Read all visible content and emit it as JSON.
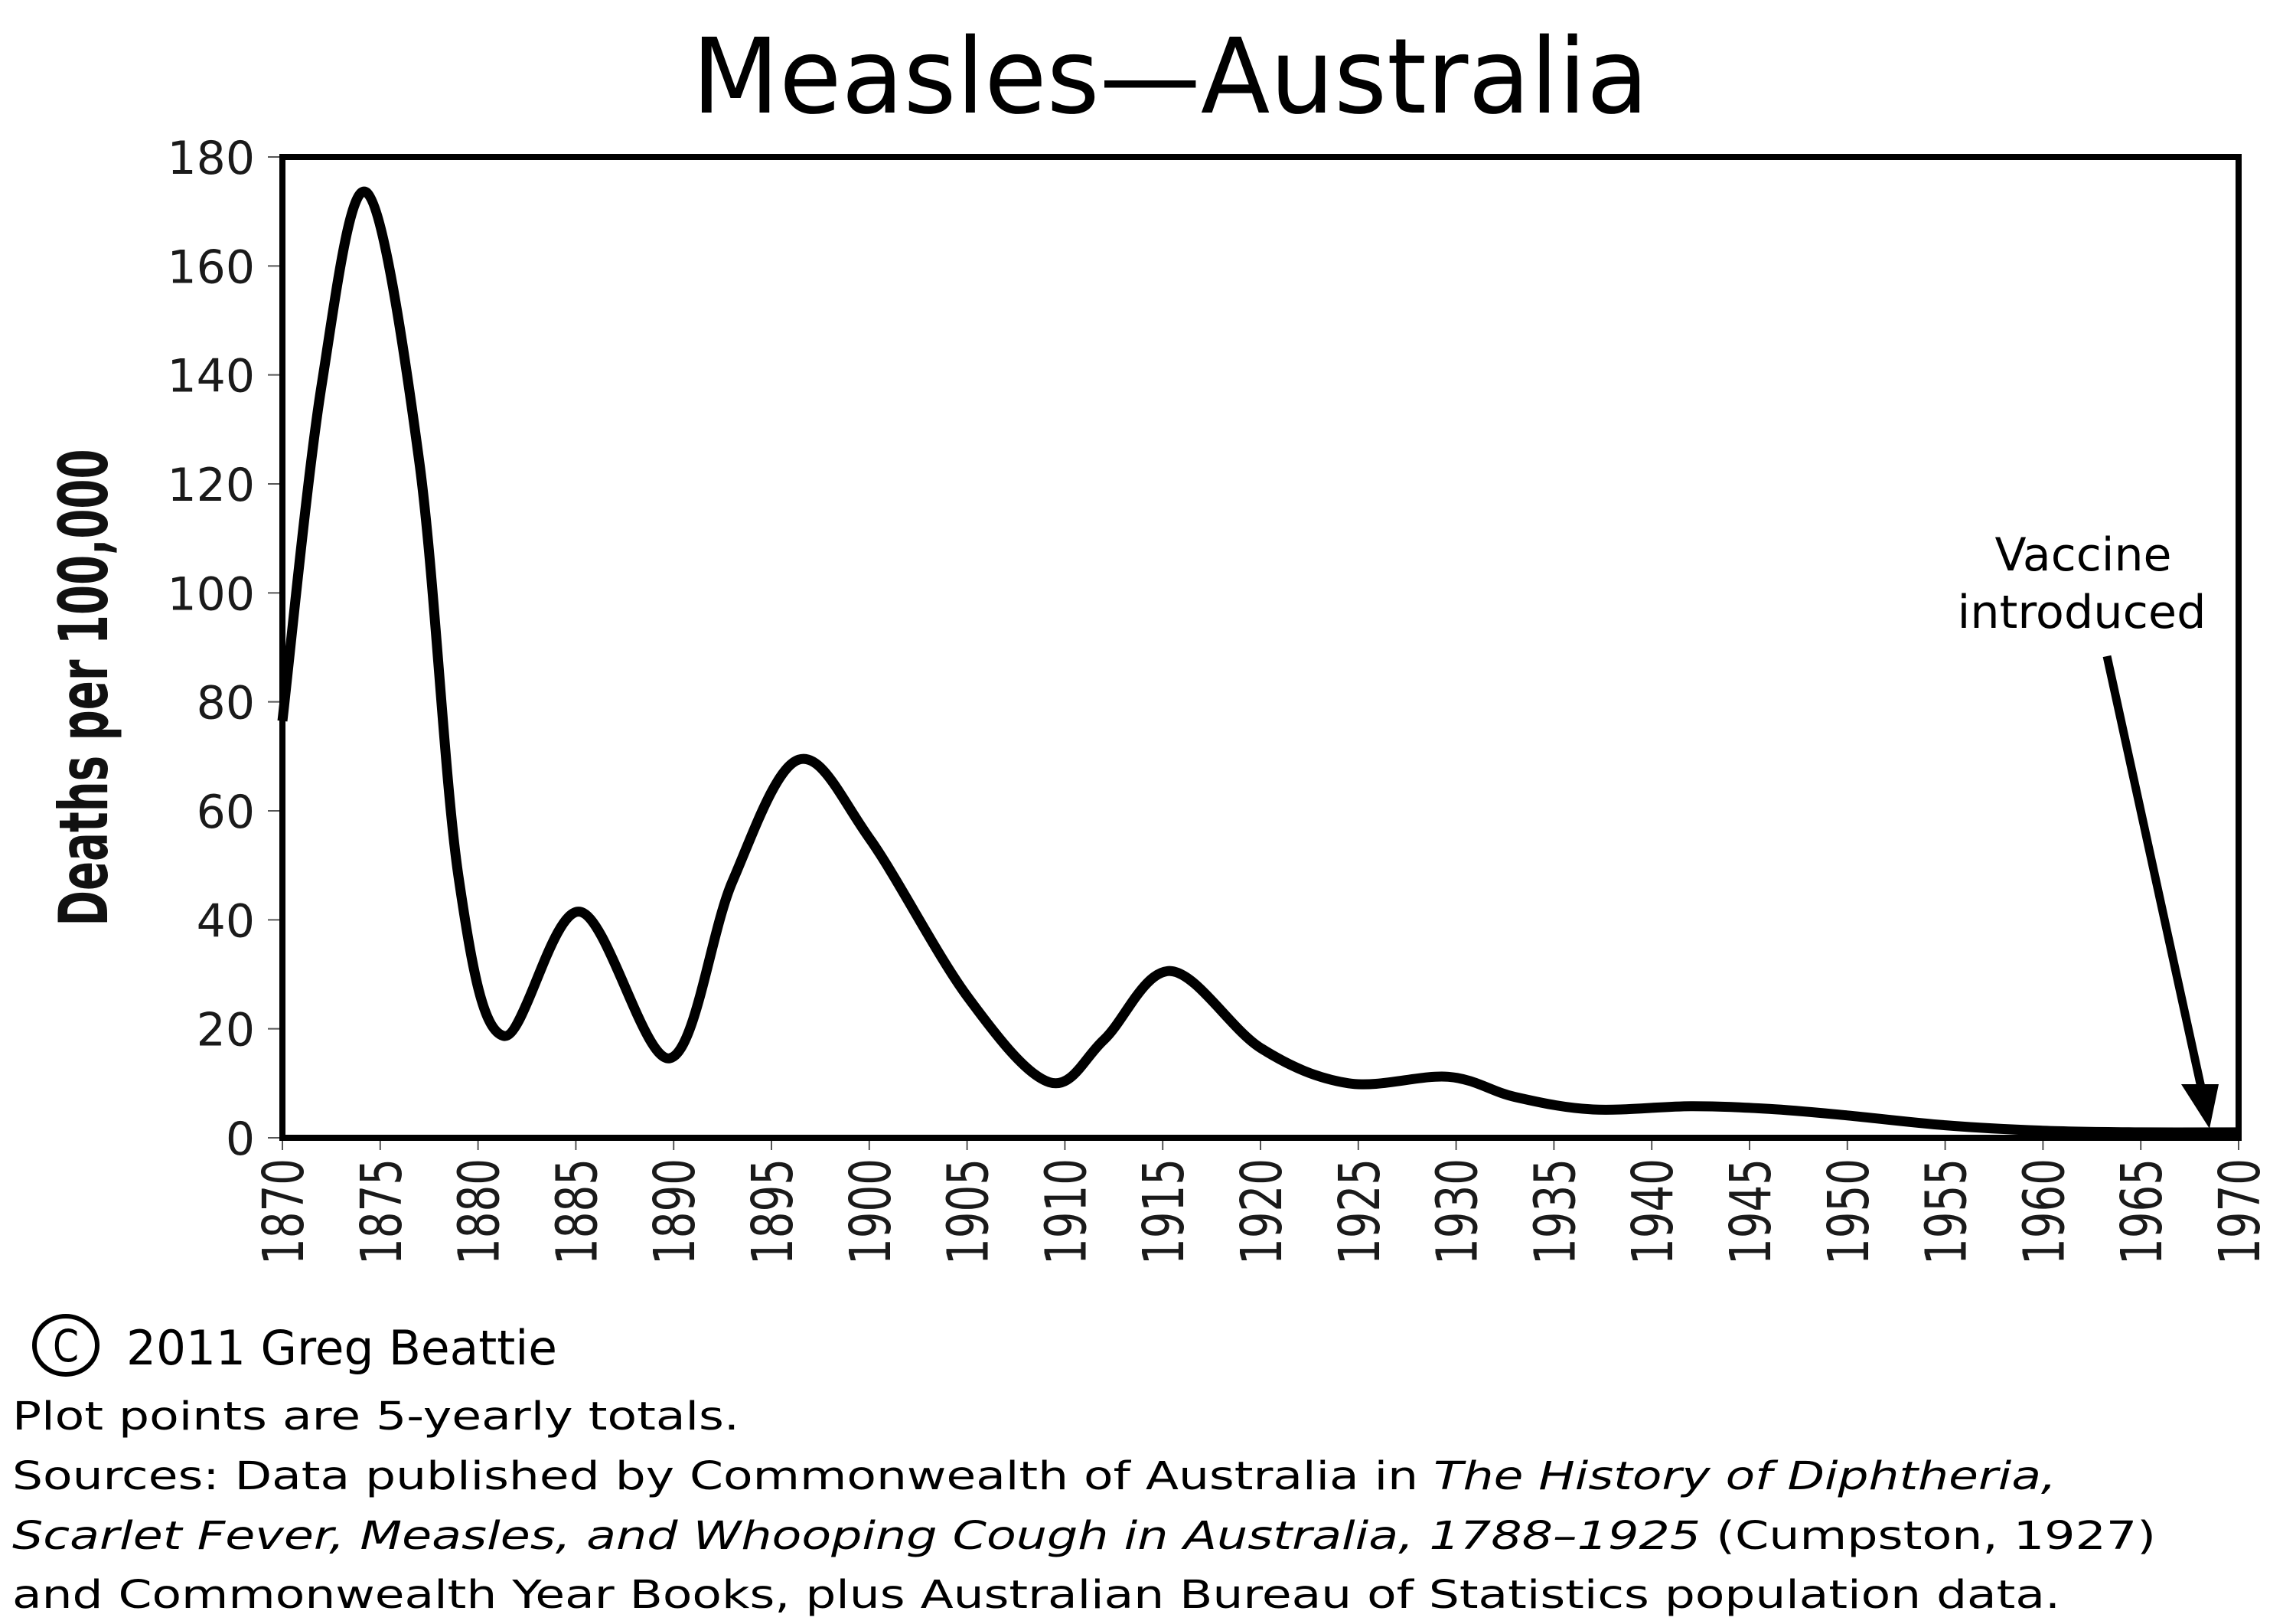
{
  "chart_data": {
    "type": "line",
    "title": "Measles—Australia",
    "xlabel": "",
    "ylabel": "Deaths per 100,000",
    "xlim": [
      1870,
      1970
    ],
    "ylim": [
      0,
      180
    ],
    "grid": false,
    "legend": "none",
    "x_ticks": [
      "1870",
      "1875",
      "1880",
      "1885",
      "1890",
      "1895",
      "1900",
      "1905",
      "1910",
      "1915",
      "1920",
      "1925",
      "1930",
      "1935",
      "1940",
      "1945",
      "1950",
      "1955",
      "1960",
      "1965",
      "1970"
    ],
    "y_ticks": [
      "0",
      "20",
      "40",
      "60",
      "80",
      "100",
      "120",
      "140",
      "160",
      "180"
    ],
    "series": [
      {
        "name": "Measles deaths per 100,000",
        "color": "#000000",
        "x": [
          1870,
          1872,
          1874.3,
          1877,
          1879,
          1881.3,
          1885.2,
          1889.8,
          1893,
          1896.4,
          1900,
          1905,
          1909.2,
          1912,
          1915.4,
          1920,
          1924.5,
          1929.6,
          1933,
          1937,
          1942,
          1946,
          1950,
          1955,
          1960,
          1965,
          1970
        ],
        "y": [
          76.5,
          138,
          173.5,
          124,
          48,
          18.7,
          41.5,
          14.6,
          47,
          69.4,
          55,
          26,
          10.2,
          18,
          30.6,
          16.5,
          10,
          11.2,
          7.5,
          5.2,
          5.8,
          5.3,
          4.1,
          2.3,
          1.3,
          1.0,
          1.0
        ]
      }
    ],
    "annotations": [
      {
        "text_lines": [
          "Vaccine",
          "introduced"
        ],
        "arrow_to": {
          "x": 1968.6,
          "y": 2
        }
      }
    ]
  },
  "footer": {
    "copyright_symbol": "C",
    "copyright_text": "2011 Greg Beattie",
    "note": "Plot points are 5-yearly totals.",
    "sources_line1": {
      "plain": "Sources: Data published by Commonwealth of Australia in ",
      "italic": "The History of Diphtheria,"
    },
    "sources_line2": {
      "italic": "Scarlet Fever, Measles, and Whooping Cough in Australia, 1788–1925",
      "plain": " (Cumpston, 1927)"
    },
    "sources_line3": "and Commonwealth Year Books, plus Australian Bureau of Statistics population data."
  }
}
